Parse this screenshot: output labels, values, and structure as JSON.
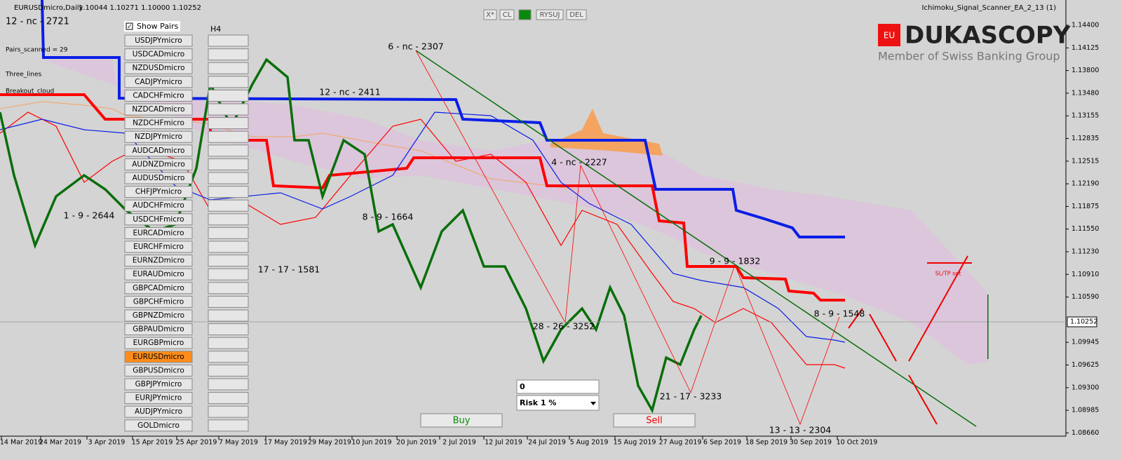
{
  "header": {
    "symbol": "EURUSDmicro,Daily",
    "ohlc": "1.10044 1.10271 1.10000 1.10252",
    "indicator": "Ichimoku_Signal_Scanner_EA_2_13 (1)"
  },
  "toolbar": [
    "X*",
    "CL",
    "RYSUJ",
    "DEL"
  ],
  "panel": {
    "show_pairs": "Show Pairs",
    "timeframe": "H4",
    "pairs": [
      "USDJPYmicro",
      "USDCADmicro",
      "NZDUSDmicro",
      "CADJPYmicro",
      "CADCHFmicro",
      "NZDCADmicro",
      "NZDCHFmicro",
      "NZDJPYmicro",
      "AUDCADmicro",
      "AUDNZDmicro",
      "AUDUSDmicro",
      "CHFJPYmicro",
      "AUDCHFmicro",
      "USDCHFmicro",
      "EURCADmicro",
      "EURCHFmicro",
      "EURNZDmicro",
      "EURAUDmicro",
      "GBPCADmicro",
      "GBPCHFmicro",
      "GBPNZDmicro",
      "GBPAUDmicro",
      "EURGBPmicro",
      "EURUSDmicro",
      "GBPUSDmicro",
      "GBPJPYmicro",
      "EURJPYmicro",
      "AUDJPYmicro",
      "GOLDmicro"
    ],
    "selected": "EURUSDmicro"
  },
  "info": [
    "Pairs_scanned = 29",
    "Three_lines",
    "Breakout_cloud"
  ],
  "logo": {
    "name": "DUKASCOPY",
    "tagline": "Member of Swiss Banking Group"
  },
  "price_axis": {
    "labels": [
      "1.14400",
      "1.14125",
      "1.13800",
      "1.13480",
      "1.13155",
      "1.12835",
      "1.12515",
      "1.12190",
      "1.11875",
      "1.11550",
      "1.11230",
      "1.10910",
      "1.10590",
      "1.09945",
      "1.09625",
      "1.09300",
      "1.08985",
      "1.08660"
    ],
    "current": "1.10252"
  },
  "date_axis": [
    "14 Mar 2019",
    "24 Mar 2019",
    "3 Apr 2019",
    "15 Apr 2019",
    "25 Apr 2019",
    "7 May 2019",
    "17 May 2019",
    "29 May 2019",
    "10 Jun 2019",
    "20 Jun 2019",
    "2 Jul 2019",
    "12 Jul 2019",
    "24 Jul 2019",
    "5 Aug 2019",
    "15 Aug 2019",
    "27 Aug 2019",
    "6 Sep 2019",
    "18 Sep 2019",
    "30 Sep 2019",
    "10 Oct 2019"
  ],
  "annotations": [
    "12 - nc - 2721",
    "6 - nc - 2307",
    "12 - nc - 2411",
    "1 - 9 - 2644",
    "8 - 9 - 1664",
    "17 - 17 - 1581",
    "4 - nc - 2227",
    "28 - 26 - 3252",
    "9 - 9 - 1832",
    "8 - 9 - 1548",
    "21 - 17 - 3233",
    "13 - 13 - 2304",
    "SL/TP set"
  ],
  "trade": {
    "lots": "0",
    "risk": "Risk  1 %",
    "buy": "Buy",
    "sell": "Sell"
  }
}
